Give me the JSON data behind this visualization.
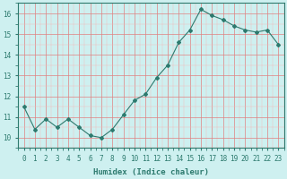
{
  "x": [
    0,
    1,
    2,
    3,
    4,
    5,
    6,
    7,
    8,
    9,
    10,
    11,
    12,
    13,
    14,
    15,
    16,
    17,
    18,
    19,
    20,
    21,
    22,
    23
  ],
  "y": [
    11.5,
    10.4,
    10.9,
    10.5,
    10.9,
    10.5,
    10.1,
    10.0,
    10.4,
    11.1,
    11.8,
    12.1,
    12.9,
    13.5,
    14.6,
    15.2,
    16.2,
    15.9,
    15.7,
    15.4,
    15.2,
    15.1,
    15.2,
    14.5
  ],
  "xlabel": "Humidex (Indice chaleur)",
  "xlim": [
    -0.5,
    23.5
  ],
  "ylim": [
    9.5,
    16.5
  ],
  "yticks": [
    10,
    11,
    12,
    13,
    14,
    15,
    16
  ],
  "xticks": [
    0,
    1,
    2,
    3,
    4,
    5,
    6,
    7,
    8,
    9,
    10,
    11,
    12,
    13,
    14,
    15,
    16,
    17,
    18,
    19,
    20,
    21,
    22,
    23
  ],
  "line_color": "#2d7a6e",
  "marker": "D",
  "marker_size": 2.0,
  "bg_color": "#cef0f0",
  "grid_minor_color": "#f5b8b8",
  "grid_major_color": "#e08080",
  "plot_bg": "#cef0f0",
  "tick_color": "#2d7a6e",
  "xlabel_fontsize": 6.5,
  "tick_fontsize": 5.5
}
